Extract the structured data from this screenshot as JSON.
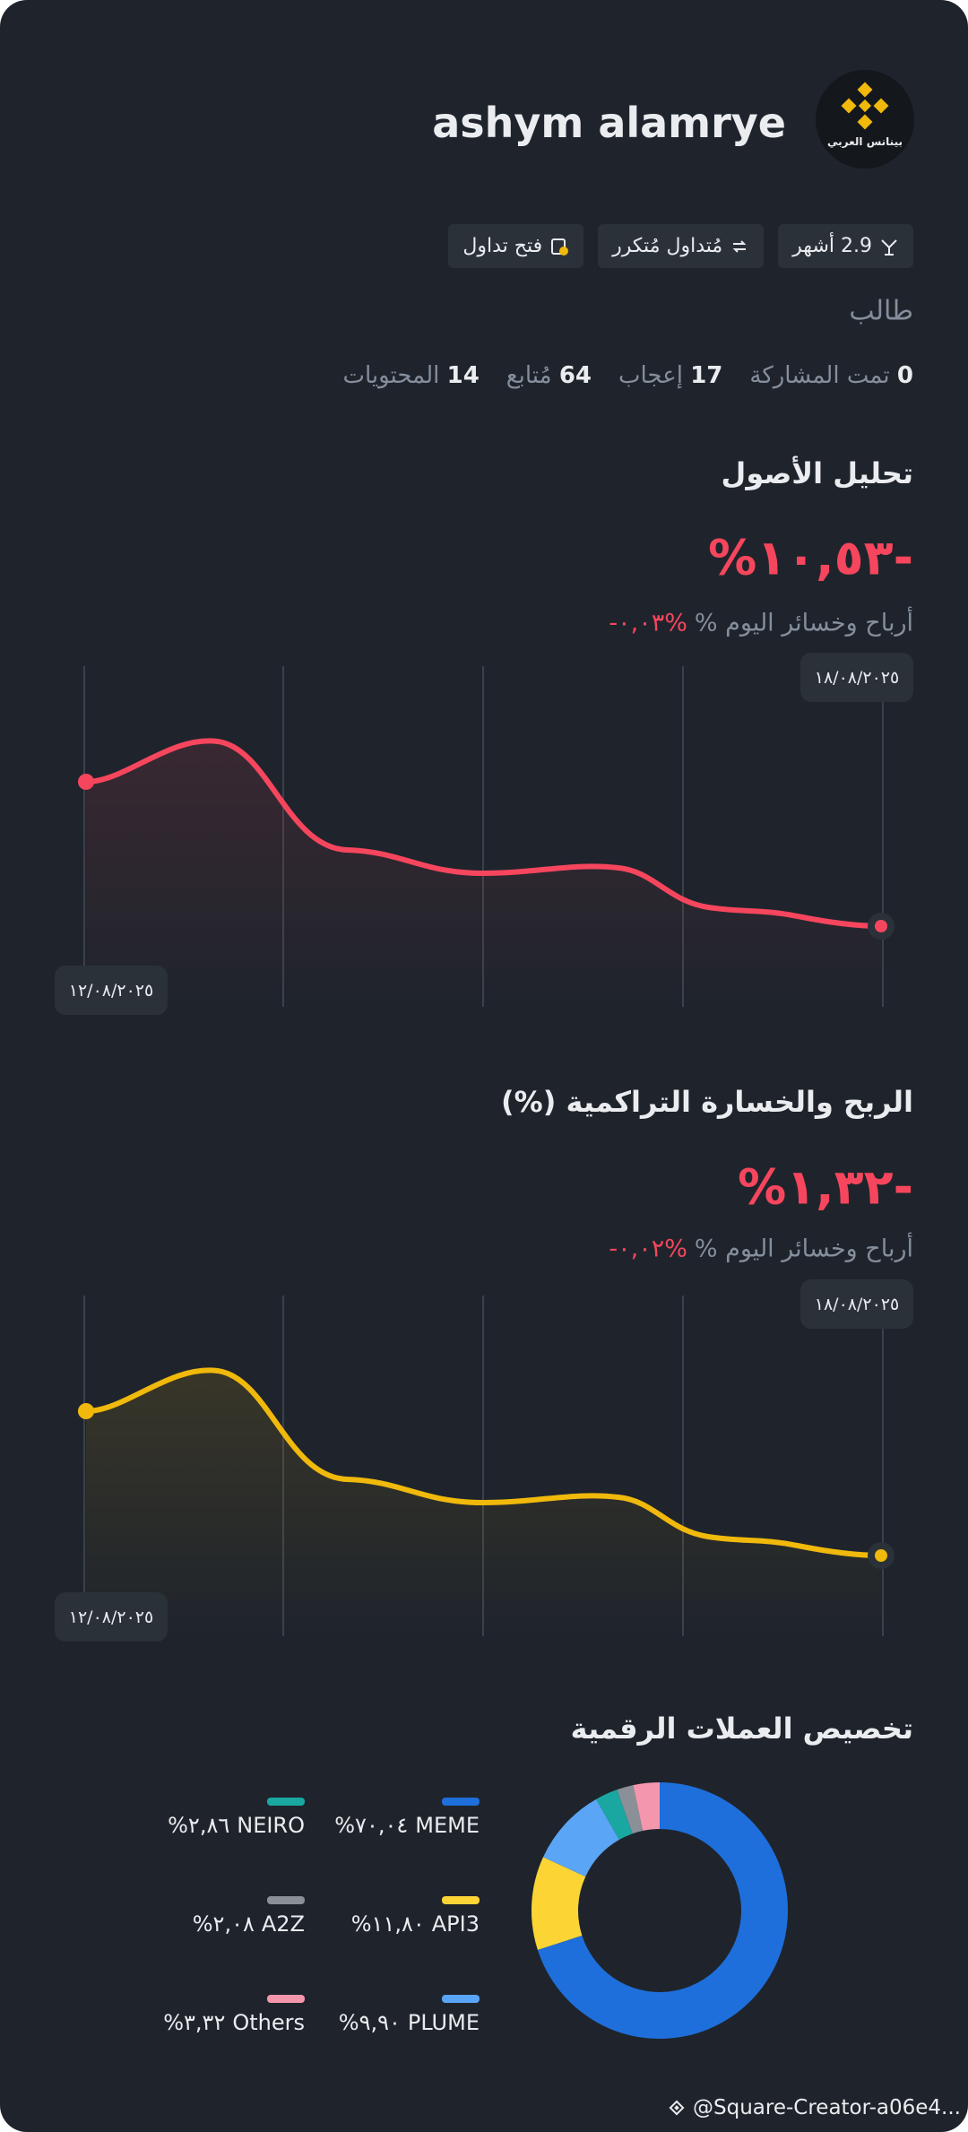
{
  "profile": {
    "name": "ashym alamrye",
    "avatar_text": "بينانس العربي",
    "badges": [
      "2.9 أشهر",
      "مُتداول مُتكرر",
      "فتح تداول"
    ],
    "role": "طالب",
    "stats": [
      {
        "value": 0,
        "label": "تمت المشاركة"
      },
      {
        "value": 17,
        "label": "إعجاب"
      },
      {
        "value": 64,
        "label": "مُتابع"
      },
      {
        "value": 14,
        "label": "المحتويات"
      }
    ]
  },
  "asset_analysis": {
    "title": "تحليل الأصول",
    "value": "%١٠,٥٣-",
    "today_label": "أرباح وخسائر اليوم %",
    "today_value": "-٠,٠٣%",
    "end_date": "١٨/٠٨/٢٠٢٥",
    "start_date": "١٢/٠٨/٢٠٢٥"
  },
  "cumulative_pnl": {
    "title": "الربح والخسارة التراكمية (%)",
    "value": "%١,٣٢-",
    "today_label": "أرباح وخسائر اليوم %",
    "today_value": "-٠,٠٢%",
    "end_date": "١٨/٠٨/٢٠٢٥",
    "start_date": "١٢/٠٨/٢٠٢٥"
  },
  "chart_data": {
    "type": "donut",
    "title": "تخصيص العملات الرقمية",
    "categories": [
      "MEME",
      "API3",
      "PLUME",
      "NEIRO",
      "A2Z",
      "Others"
    ],
    "values": [
      70.04,
      11.8,
      9.9,
      2.86,
      2.08,
      3.32
    ],
    "value_labels": [
      "%٧٠,٠٤",
      "%١١,٨٠",
      "%٩,٩٠",
      "%٢,٨٦",
      "%٢,٠٨",
      "%٣,٣٢"
    ],
    "colors": [
      "#1e6fdb",
      "#fcd535",
      "#5aa5f5",
      "#1aa7a1",
      "#8a8f98",
      "#f497ad"
    ]
  },
  "footer": {
    "watermark": "@Square-Creator-a06e4..."
  }
}
